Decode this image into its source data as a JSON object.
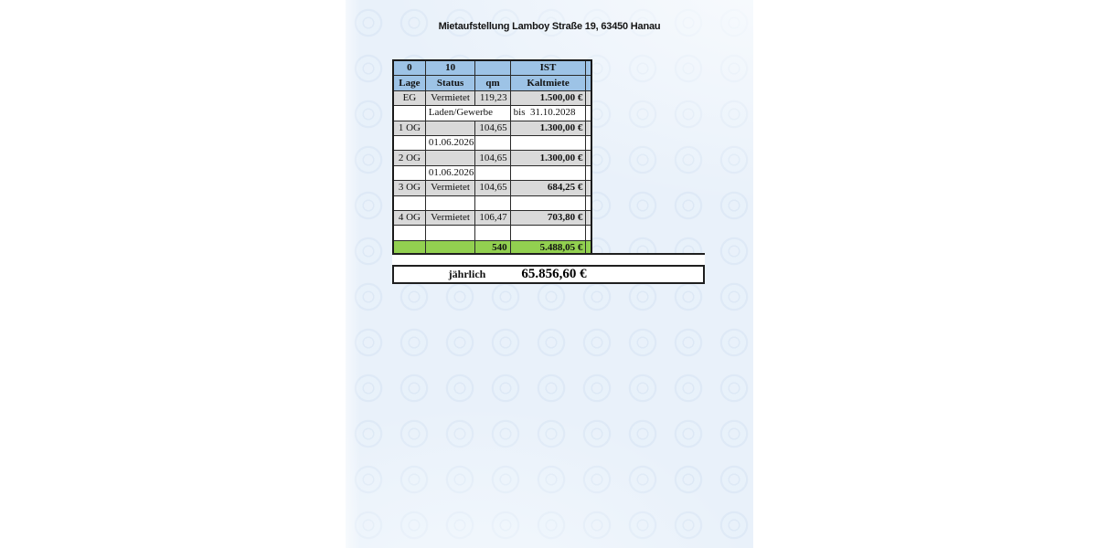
{
  "title": "Mietaufstellung Lamboy Straße 19, 63450 Hanau",
  "colors": {
    "header-blue": "#9dc3e6",
    "row-gray": "#d9d9d9",
    "total-green": "#92d050",
    "grid-line": "#2a2a2a",
    "cell-white": "#ffffff",
    "doc-bg": "#e9f1fa"
  },
  "table": {
    "column_headers": [
      "Lage",
      "Status",
      "qm",
      "Kaltmiete"
    ],
    "rows": [
      {
        "style": "header",
        "cells": [
          {
            "t": "0",
            "cls": "c"
          },
          {
            "t": "10",
            "cls": "c"
          },
          {
            "t": "",
            "cls": "c"
          },
          {
            "t": "IST",
            "cls": "c"
          }
        ]
      },
      {
        "style": "header",
        "cells": [
          {
            "t": "Lage",
            "cls": "c"
          },
          {
            "t": "Status",
            "cls": "c"
          },
          {
            "t": "qm",
            "cls": "c"
          },
          {
            "t": "Kaltmiete",
            "cls": "c"
          }
        ]
      },
      {
        "style": "gray",
        "cells": [
          {
            "t": "EG",
            "cls": "c"
          },
          {
            "t": "Vermietet",
            "cls": "c"
          },
          {
            "t": "119,23",
            "cls": "r"
          },
          {
            "t": "1.500,00 €",
            "cls": "r b"
          }
        ]
      },
      {
        "style": "white",
        "cells": [
          {
            "t": "",
            "cls": "c"
          },
          {
            "t": "Laden/Gewerbe",
            "cls": "l",
            "span": 2
          },
          {
            "t": "bis  31.10.2028",
            "cls": "l"
          }
        ]
      },
      {
        "style": "gray",
        "cells": [
          {
            "t": "1 OG",
            "cls": "c"
          },
          {
            "t": "",
            "cls": "c"
          },
          {
            "t": "104,65",
            "cls": "r"
          },
          {
            "t": "1.300,00 €",
            "cls": "r b"
          }
        ]
      },
      {
        "style": "white",
        "cells": [
          {
            "t": "",
            "cls": "c"
          },
          {
            "t": "01.06.2026",
            "cls": "c"
          },
          {
            "t": "",
            "cls": "c"
          },
          {
            "t": "",
            "cls": "c"
          }
        ]
      },
      {
        "style": "gray",
        "cells": [
          {
            "t": "2 OG",
            "cls": "c"
          },
          {
            "t": "",
            "cls": "c"
          },
          {
            "t": "104,65",
            "cls": "r"
          },
          {
            "t": "1.300,00 €",
            "cls": "r b"
          }
        ]
      },
      {
        "style": "white",
        "cells": [
          {
            "t": "",
            "cls": "c"
          },
          {
            "t": "01.06.2026",
            "cls": "c"
          },
          {
            "t": "",
            "cls": "c"
          },
          {
            "t": "",
            "cls": "c"
          }
        ]
      },
      {
        "style": "gray",
        "cells": [
          {
            "t": "3 OG",
            "cls": "c"
          },
          {
            "t": "Vermietet",
            "cls": "c"
          },
          {
            "t": "104,65",
            "cls": "r"
          },
          {
            "t": "684,25 €",
            "cls": "r b"
          }
        ]
      },
      {
        "style": "white",
        "cells": [
          {
            "t": "",
            "cls": "c"
          },
          {
            "t": "",
            "cls": "c"
          },
          {
            "t": "",
            "cls": "c"
          },
          {
            "t": "",
            "cls": "c"
          }
        ]
      },
      {
        "style": "gray",
        "cells": [
          {
            "t": "4 OG",
            "cls": "c"
          },
          {
            "t": "Vermietet",
            "cls": "c"
          },
          {
            "t": "106,47",
            "cls": "r"
          },
          {
            "t": "703,80 €",
            "cls": "r b"
          }
        ]
      },
      {
        "style": "white",
        "cells": [
          {
            "t": "",
            "cls": "c"
          },
          {
            "t": "",
            "cls": "c"
          },
          {
            "t": "",
            "cls": "c"
          },
          {
            "t": "",
            "cls": "c"
          }
        ]
      },
      {
        "style": "green",
        "cells": [
          {
            "t": "",
            "cls": "c"
          },
          {
            "t": "",
            "cls": "c"
          },
          {
            "t": "540",
            "cls": "r b"
          },
          {
            "t": "5.488,05 €",
            "cls": "r b"
          }
        ]
      }
    ]
  },
  "summary": {
    "label": "jährlich",
    "value": "65.856,60 €"
  }
}
